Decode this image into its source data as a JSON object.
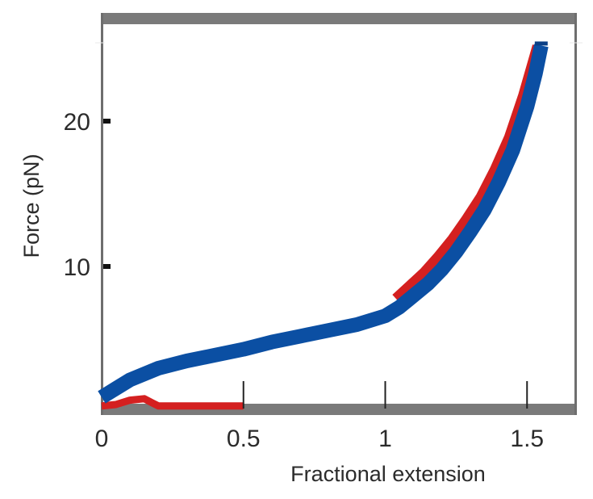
{
  "chart_data": {
    "type": "line",
    "title": "",
    "xlabel": "Fractional extension",
    "ylabel": "Force (pN)",
    "xlim": [
      0,
      1.68
    ],
    "ylim": [
      0,
      27
    ],
    "xticks": [
      0,
      0.5,
      1,
      1.5
    ],
    "xtick_labels": [
      "0",
      "0.5",
      "1",
      "1.5"
    ],
    "yticks": [
      10,
      20
    ],
    "ytick_labels": [
      "10",
      "20"
    ],
    "grid": false,
    "legend": null,
    "series": [
      {
        "name": "blue trace",
        "color": "#0b4fa3",
        "x": [
          0.0,
          0.05,
          0.1,
          0.2,
          0.3,
          0.4,
          0.5,
          0.6,
          0.7,
          0.8,
          0.9,
          1.0,
          1.05,
          1.1,
          1.15,
          1.2,
          1.25,
          1.3,
          1.35,
          1.4,
          1.45,
          1.5,
          1.53,
          1.55
        ],
        "y": [
          1.0,
          1.6,
          2.2,
          3.0,
          3.5,
          3.9,
          4.3,
          4.8,
          5.2,
          5.6,
          6.0,
          6.6,
          7.2,
          8.0,
          8.8,
          9.8,
          11.0,
          12.4,
          13.9,
          15.8,
          18.0,
          21.0,
          23.3,
          25.2
        ]
      },
      {
        "name": "red trace",
        "color": "#d42020",
        "x": [
          0.0,
          0.05,
          0.1,
          0.15,
          0.18,
          0.2,
          0.3,
          0.4,
          0.5,
          1.05,
          1.1,
          1.15,
          1.2,
          1.25,
          1.3,
          1.35,
          1.4,
          1.45,
          1.5,
          1.55
        ],
        "y": [
          0.4,
          0.5,
          0.8,
          0.9,
          0.6,
          0.4,
          0.4,
          0.4,
          0.4,
          7.6,
          8.5,
          9.4,
          10.5,
          11.7,
          13.1,
          14.6,
          16.5,
          18.7,
          21.6,
          25.0
        ]
      }
    ]
  }
}
